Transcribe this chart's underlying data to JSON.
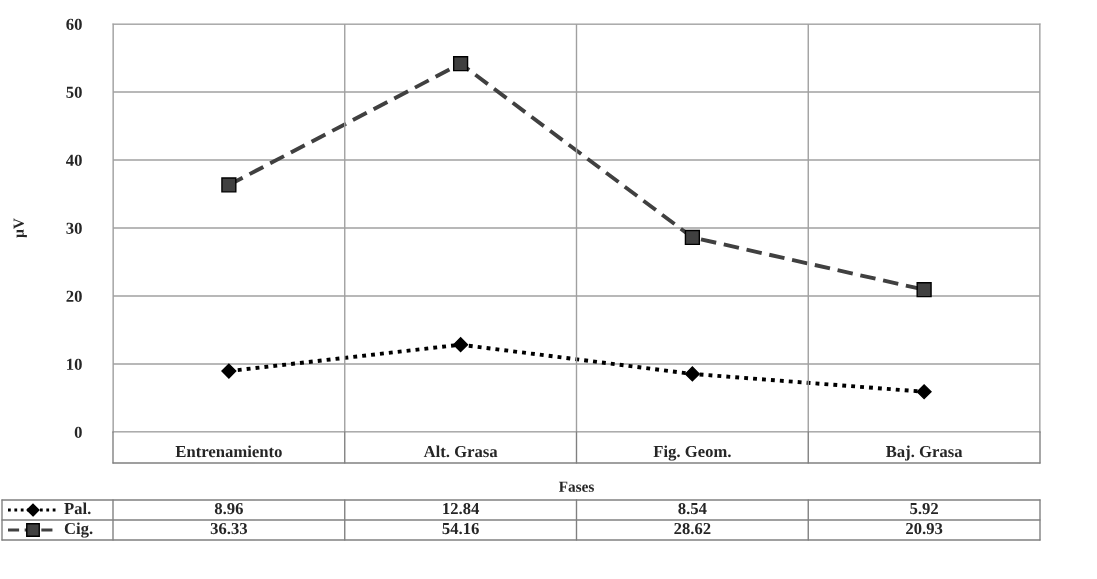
{
  "chart_data": {
    "type": "line",
    "xlabel": "Fases",
    "ylabel": "µV",
    "categories": [
      "Entrenamiento",
      "Alt. Grasa",
      "Fig. Geom.",
      "Baj. Grasa"
    ],
    "series": [
      {
        "name": "Pal.",
        "color": "#000000",
        "values": [
          8.96,
          12.84,
          8.54,
          5.92
        ],
        "marker": "diamond",
        "line_style": "dotted"
      },
      {
        "name": "Cig.",
        "color": "#404040",
        "values": [
          36.33,
          54.16,
          28.62,
          20.93
        ],
        "marker": "square",
        "line_style": "dashed"
      }
    ],
    "ylim": [
      0,
      60
    ],
    "yticks": [
      0,
      10,
      20,
      30,
      40,
      50,
      60
    ],
    "grid": true,
    "data_labels": true,
    "legend": "bottom left"
  }
}
